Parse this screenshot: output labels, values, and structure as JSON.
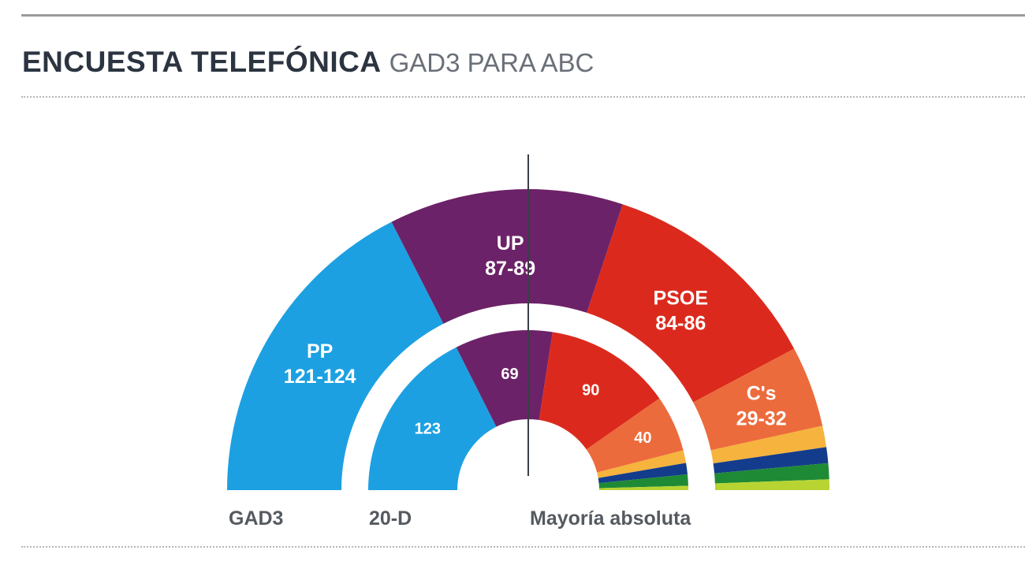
{
  "header": {
    "title": "ENCUESTA TELEFÓNICA",
    "subtitle": "GAD3 PARA ABC"
  },
  "colors": {
    "PP": "#1ca0e2",
    "UP": "#6c2268",
    "PSOE": "#db2a1d",
    "Cs": "#ec6b3c",
    "yellow": "#f6b33d",
    "navy": "#143c8c",
    "green": "#1e8a35",
    "lime": "#b8d432"
  },
  "chart_data": {
    "type": "pie",
    "layout": "semicircle-parliament",
    "total_seats": 350,
    "majority_line_label": "Mayoría absoluta",
    "series": [
      {
        "name": "GAD3",
        "ring": "outer",
        "segments": [
          {
            "party": "PP",
            "label": "PP",
            "range_text": "121-124",
            "value": 122.5,
            "color_key": "PP"
          },
          {
            "party": "UP",
            "label": "UP",
            "range_text": "87-89",
            "value": 88,
            "color_key": "UP"
          },
          {
            "party": "PSOE",
            "label": "PSOE",
            "range_text": "84-86",
            "value": 85,
            "color_key": "PSOE"
          },
          {
            "party": "C's",
            "label": "C's",
            "range_text": "29-32",
            "value": 30.5,
            "color_key": "Cs"
          },
          {
            "party": "",
            "label": "",
            "range_text": "",
            "value": 8,
            "color_key": "yellow"
          },
          {
            "party": "",
            "label": "",
            "range_text": "",
            "value": 6,
            "color_key": "navy"
          },
          {
            "party": "",
            "label": "",
            "range_text": "",
            "value": 6,
            "color_key": "green"
          },
          {
            "party": "",
            "label": "",
            "range_text": "",
            "value": 4,
            "color_key": "lime"
          }
        ]
      },
      {
        "name": "20-D",
        "ring": "inner",
        "segments": [
          {
            "party": "PP",
            "label": "",
            "range_text": "123",
            "value": 123,
            "color_key": "PP"
          },
          {
            "party": "UP",
            "label": "",
            "range_text": "69",
            "value": 69,
            "color_key": "UP"
          },
          {
            "party": "PSOE",
            "label": "",
            "range_text": "90",
            "value": 90,
            "color_key": "PSOE"
          },
          {
            "party": "C's",
            "label": "",
            "range_text": "40",
            "value": 40,
            "color_key": "Cs"
          },
          {
            "party": "",
            "label": "",
            "range_text": "",
            "value": 9,
            "color_key": "yellow"
          },
          {
            "party": "",
            "label": "",
            "range_text": "",
            "value": 8,
            "color_key": "navy"
          },
          {
            "party": "",
            "label": "",
            "range_text": "",
            "value": 8,
            "color_key": "green"
          },
          {
            "party": "",
            "label": "",
            "range_text": "",
            "value": 3,
            "color_key": "lime"
          }
        ]
      }
    ]
  }
}
